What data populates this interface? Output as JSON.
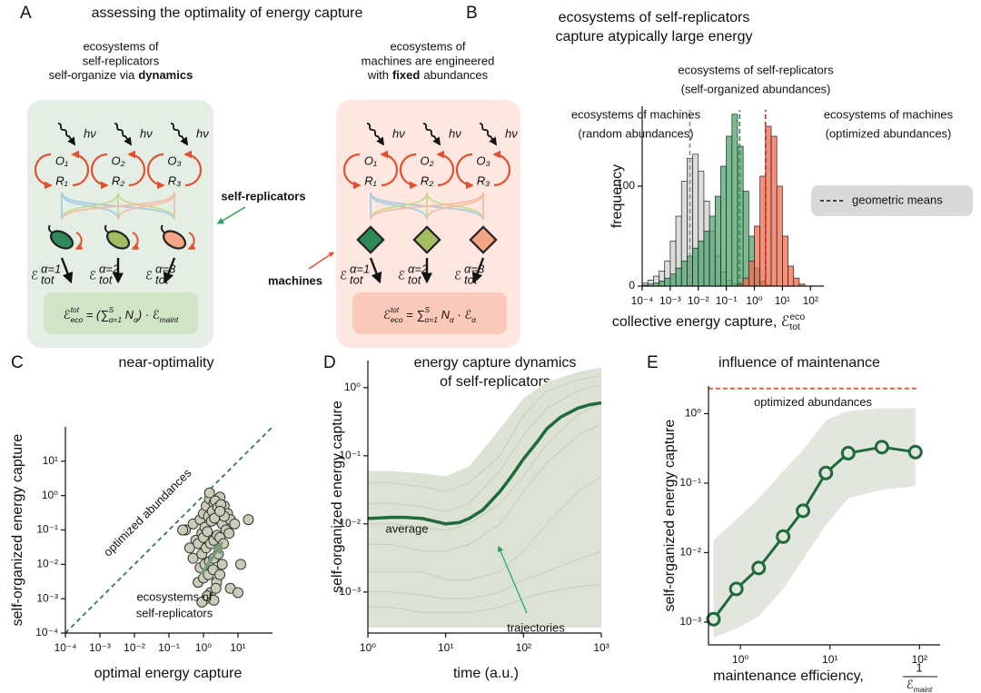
{
  "diagram": {
    "panel": "A",
    "title": "assessing the optimality of energy capture",
    "left": {
      "heading": [
        "ecosystems of",
        "self-replicators"
      ],
      "heading_last": [
        "self-organize via",
        "dynamics"
      ],
      "formula": [
        [
          "ℰ",
          null
        ],
        [
          "tot",
          "sup"
        ],
        [
          "eco",
          "sub"
        ],
        [
          " = (",
          null
        ],
        [
          "∑",
          null
        ],
        [
          "S",
          "sup"
        ],
        [
          "α=1",
          "sub"
        ],
        [
          " N",
          null
        ],
        [
          "α",
          "sub"
        ],
        [
          ") · ℰ",
          null
        ],
        [
          "maint",
          "sub"
        ]
      ],
      "annotation": "self-replicators"
    },
    "right": {
      "heading": [
        "ecosystems of",
        "machines are engineered"
      ],
      "heading_last": [
        "with",
        "fixed",
        "abundances"
      ],
      "formula": [
        [
          "ℰ",
          null
        ],
        [
          "tot",
          "sup"
        ],
        [
          "eco",
          "sub"
        ],
        [
          " = ",
          null
        ],
        [
          "∑",
          null
        ],
        [
          "S",
          "sup"
        ],
        [
          "α=1",
          "sub"
        ],
        [
          " N",
          null
        ],
        [
          "α",
          "sub"
        ],
        [
          " · ℰ",
          null
        ],
        [
          "α",
          "sub"
        ]
      ],
      "annotation": "machines"
    },
    "photon": "hν",
    "species": [
      [
        "O₁",
        "R₁"
      ],
      [
        "O₂",
        "R₂"
      ],
      [
        "O₃",
        "R₃"
      ]
    ],
    "energy_labels": [
      {
        "base": "ℰ",
        "sub": "tot",
        "sup": "α=1"
      },
      {
        "base": "ℰ",
        "sub": "tot",
        "sup": "α=2"
      },
      {
        "base": "ℰ",
        "sub": "tot",
        "sup": "α=3"
      }
    ]
  },
  "chart_data": [
    {
      "type": "histogram",
      "panel": "B",
      "title": [
        "ecosystems of self-replicators",
        "capture atypically large energy"
      ],
      "ylabel": "frequency",
      "xlabel": [
        [
          "collective energy capture, ",
          null
        ],
        [
          "ℰ",
          null
        ],
        [
          "eco",
          "sup"
        ],
        [
          "tot",
          "sub"
        ]
      ],
      "xscale": "log",
      "xlim": [
        0.0001,
        300
      ],
      "ylim": [
        0,
        180
      ],
      "xticks": [
        {
          "value": 0.0001,
          "label": "10⁻⁴"
        },
        {
          "value": 0.001,
          "label": "10⁻³"
        },
        {
          "value": 0.01,
          "label": "10⁻²"
        },
        {
          "value": 0.1,
          "label": "10⁻¹"
        },
        {
          "value": 1,
          "label": "10⁰"
        },
        {
          "value": 10,
          "label": "10¹"
        },
        {
          "value": 100,
          "label": "10²"
        }
      ],
      "yticks": [
        0,
        100
      ],
      "bins": [
        0.0001,
        0.0001585,
        0.0002512,
        0.0003981,
        0.000631,
        0.001,
        0.001585,
        0.002512,
        0.003981,
        0.00631,
        0.01,
        0.01585,
        0.02512,
        0.03981,
        0.0631,
        0.1,
        0.1585,
        0.2512,
        0.3981,
        0.631,
        1,
        1.585,
        2.512,
        3.981,
        6.31,
        10,
        15.85,
        25.12,
        39.81,
        63.1,
        100
      ],
      "series": [
        {
          "name": [
            "ecosystems of machines",
            "(random abundances)"
          ],
          "color": "#d0d0d0",
          "mean_color": "#8c8c8c",
          "mean": 0.005,
          "values": [
            3,
            6,
            10,
            15,
            25,
            45,
            70,
            105,
            128,
            132,
            115,
            85,
            55,
            30,
            14,
            6,
            2,
            0,
            0,
            0,
            0,
            0,
            0,
            0,
            0,
            0,
            0,
            0,
            0,
            0
          ]
        },
        {
          "name": [
            "ecosystems of self-replicators",
            "(self-organized abundances)"
          ],
          "color": "#4fa66e",
          "mean_color": "#2e8b57",
          "mean": 0.3,
          "values": [
            1,
            2,
            3,
            5,
            8,
            12,
            18,
            25,
            30,
            38,
            45,
            55,
            70,
            90,
            120,
            150,
            172,
            140,
            95,
            50,
            18,
            5,
            1,
            0,
            0,
            0,
            0,
            0,
            0,
            0
          ]
        },
        {
          "name": [
            "ecosystems of machines",
            "(optimized abundances)"
          ],
          "color": "#f26b4f",
          "mean_color": "#b8321c",
          "mean": 2.5,
          "values": [
            0,
            0,
            0,
            0,
            0,
            0,
            0,
            0,
            0,
            0,
            0,
            0,
            0,
            0,
            0,
            0,
            0,
            2,
            8,
            25,
            60,
            110,
            160,
            150,
            100,
            50,
            20,
            8,
            2,
            0
          ]
        }
      ],
      "label_colors": [
        "#9a9a9a",
        "#2e9e5e",
        "#e2512f"
      ],
      "mean_legend": "geometric means"
    },
    {
      "type": "scatter",
      "panel": "C",
      "title": [
        "near-optimality"
      ],
      "xlabel": "optimal energy capture",
      "ylabel": "self-organized energy capture",
      "xscale": "log",
      "yscale": "log",
      "xlim": [
        0.0001,
        100
      ],
      "ylim": [
        0.0001,
        100
      ],
      "xticks": [
        {
          "value": 0.0001,
          "label": "10⁻⁴"
        },
        {
          "value": 0.001,
          "label": "10⁻³"
        },
        {
          "value": 0.01,
          "label": "10⁻²"
        },
        {
          "value": 0.1,
          "label": "10⁻¹"
        },
        {
          "value": 1,
          "label": "10⁰"
        },
        {
          "value": 10,
          "label": "10¹"
        }
      ],
      "yticks": [
        {
          "value": 0.0001,
          "label": "10⁻⁴"
        },
        {
          "value": 0.001,
          "label": "10⁻³"
        },
        {
          "value": 0.01,
          "label": "10⁻²"
        },
        {
          "value": 0.1,
          "label": "10⁻¹"
        },
        {
          "value": 1,
          "label": "10⁰"
        },
        {
          "value": 10,
          "label": "10¹"
        }
      ],
      "color": "#c9cdb7",
      "diagonal": {
        "label": "optimized abundances",
        "color": "#2e7d4f",
        "label_color": "#e2512f"
      },
      "annotation": {
        "text": [
          "ecosystems of",
          "self-replicators"
        ],
        "color": "#7a9a7c"
      },
      "x": [
        0.3,
        0.5,
        0.8,
        1,
        1.2,
        1.5,
        2,
        2.5,
        3,
        4,
        5,
        0.6,
        0.9,
        1.1,
        1.4,
        1.8,
        2.2,
        2.8,
        3.5,
        4.5,
        6,
        0.4,
        0.7,
        1,
        1.3,
        1.7,
        2.1,
        2.6,
        3.2,
        4,
        5.5,
        8,
        0.5,
        0.9,
        1.2,
        1.6,
        2,
        2.5,
        3,
        3.8,
        0.8,
        1.1,
        1.5,
        2,
        2.7,
        3.5,
        0.7,
        1,
        1.4,
        1.9,
        2.4,
        3,
        1.2,
        1.6,
        2.3,
        0.9,
        1.3,
        2,
        6,
        10,
        20,
        0.25,
        12,
        1.5,
        3
      ],
      "y": [
        0.1,
        0.15,
        0.2,
        0.3,
        0.5,
        0.8,
        0.6,
        0.4,
        0.9,
        0.5,
        0.3,
        0.05,
        0.08,
        0.12,
        0.25,
        0.35,
        0.7,
        0.2,
        0.15,
        0.1,
        0.2,
        0.03,
        0.04,
        0.06,
        0.09,
        0.18,
        0.22,
        0.45,
        0.55,
        0.25,
        0.08,
        0.15,
        0.015,
        0.02,
        0.03,
        0.04,
        0.05,
        0.07,
        0.06,
        0.04,
        0.008,
        0.01,
        0.012,
        0.015,
        0.02,
        0.01,
        0.003,
        0.004,
        0.005,
        0.007,
        0.003,
        0.005,
        0.001,
        0.0015,
        0.002,
        0.0008,
        0.0012,
        0.0009,
        0.002,
        0.0015,
        0.2,
        0.1,
        0.01,
        1.2,
        0.35
      ]
    },
    {
      "type": "line",
      "panel": "D",
      "title": [
        "energy capture dynamics",
        "of self-replicators"
      ],
      "xlabel": "time (a.u.)",
      "ylabel": "self-organized energy capture",
      "xscale": "log",
      "yscale": "log",
      "xlim": [
        1,
        1000
      ],
      "ylim": [
        0.00025,
        2.5
      ],
      "xticks": [
        {
          "value": 1,
          "label": "10⁰"
        },
        {
          "value": 10,
          "label": "10¹"
        },
        {
          "value": 100,
          "label": "10²"
        },
        {
          "value": 1000,
          "label": "10³"
        }
      ],
      "yticks": [
        {
          "value": 0.001,
          "label": "10⁻³"
        },
        {
          "value": 0.01,
          "label": "10⁻²"
        },
        {
          "value": 0.1,
          "label": "10⁻¹"
        },
        {
          "value": 1,
          "label": "10⁰"
        }
      ],
      "x": [
        1,
        2,
        3,
        5,
        7,
        10,
        15,
        20,
        30,
        50,
        70,
        100,
        150,
        200,
        300,
        500,
        700,
        1000
      ],
      "series": [
        {
          "name": "average",
          "color": "#1f6b3a",
          "values": [
            0.012,
            0.0125,
            0.0125,
            0.012,
            0.011,
            0.01,
            0.0105,
            0.012,
            0.016,
            0.03,
            0.05,
            0.09,
            0.16,
            0.25,
            0.37,
            0.5,
            0.56,
            0.6
          ]
        }
      ],
      "band": {
        "name": "trajectories",
        "color": "#dde3d4",
        "label_color": "#2aa872",
        "x": [
          1,
          2,
          5,
          10,
          20,
          50,
          100,
          200,
          500,
          1000
        ],
        "lower": [
          0.0003,
          0.0003,
          0.0003,
          0.0003,
          0.0003,
          0.0003,
          0.0003,
          0.0003,
          0.0003,
          0.0003
        ],
        "upper": [
          0.06,
          0.06,
          0.055,
          0.05,
          0.07,
          0.25,
          0.7,
          1.2,
          1.7,
          2
        ],
        "lines": [
          [
            0.02,
            0.02,
            0.018,
            0.015,
            0.02,
            0.06,
            0.2,
            0.5,
            0.9,
            1.1
          ],
          [
            0.005,
            0.005,
            0.004,
            0.004,
            0.005,
            0.01,
            0.03,
            0.08,
            0.2,
            0.3
          ],
          [
            0.002,
            0.002,
            0.002,
            0.0015,
            0.0015,
            0.002,
            0.004,
            0.01,
            0.03,
            0.05
          ],
          [
            0.04,
            0.04,
            0.035,
            0.03,
            0.04,
            0.1,
            0.4,
            0.9,
            1.3,
            1.5
          ],
          [
            0.001,
            0.001,
            0.0009,
            0.0008,
            0.0008,
            0.001,
            0.0015,
            0.002,
            0.003,
            0.004
          ],
          [
            0.01,
            0.01,
            0.009,
            0.008,
            0.01,
            0.02,
            0.05,
            0.15,
            0.4,
            0.6
          ],
          [
            0.0006,
            0.0006,
            0.0005,
            0.0005,
            0.0005,
            0.0006,
            0.0008,
            0.001,
            0.0012,
            0.0013
          ]
        ],
        "line_color": "#c5ceba"
      }
    },
    {
      "type": "line",
      "panel": "E",
      "title": [
        "influence of maintenance"
      ],
      "xlabel": "maintenance efficiency,",
      "xlabel_fraction": {
        "numerator": "1",
        "denominator": [
          [
            "ℰ",
            null
          ],
          [
            "maint",
            "sub"
          ]
        ]
      },
      "ylabel": "self-organized energy capture",
      "xscale": "log",
      "yscale": "log",
      "xlim": [
        0.44,
        170
      ],
      "ylim": [
        0.00047,
        2.5
      ],
      "xticks": [
        {
          "value": 1,
          "label": "10⁰"
        },
        {
          "value": 10,
          "label": "10¹"
        },
        {
          "value": 100,
          "label": "10²"
        }
      ],
      "yticks": [
        {
          "value": 0.001,
          "label": "10⁻³"
        },
        {
          "value": 0.01,
          "label": "10⁻²"
        },
        {
          "value": 0.1,
          "label": "10⁻¹"
        },
        {
          "value": 1,
          "label": "10⁰"
        }
      ],
      "x": [
        0.5,
        0.9,
        1.6,
        3,
        5,
        9,
        16,
        38,
        90
      ],
      "markers": true,
      "series": [
        {
          "color": "#1f6b3a",
          "values": [
            0.0011,
            0.003,
            0.006,
            0.017,
            0.04,
            0.14,
            0.27,
            0.33,
            0.28
          ]
        }
      ],
      "band": {
        "color": "#e3e6de",
        "lower": [
          0.0006,
          0.0008,
          0.0012,
          0.003,
          0.008,
          0.025,
          0.06,
          0.08,
          0.09
        ],
        "upper": [
          0.015,
          0.03,
          0.06,
          0.15,
          0.3,
          0.8,
          1.1,
          1.2,
          1.2
        ]
      },
      "reference": {
        "value": 2.3,
        "label": "optimized abundances",
        "color": "#e2512f"
      }
    }
  ]
}
